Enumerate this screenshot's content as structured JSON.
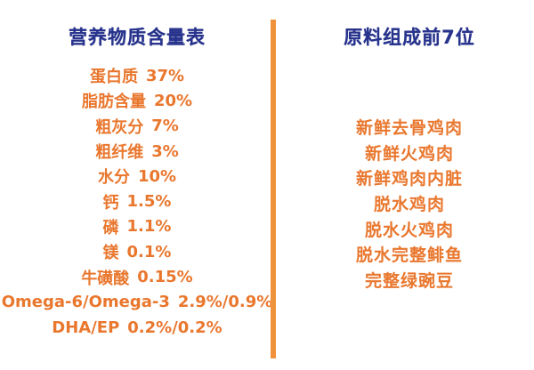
{
  "left_panel": {
    "title": "营养物质含量表",
    "items": [
      {
        "label": "蛋白质",
        "value": "37%"
      },
      {
        "label": "脂肪含量",
        "value": "20%"
      },
      {
        "label": "粗灰分",
        "value": "7%"
      },
      {
        "label": "粗纤维",
        "value": "3%"
      },
      {
        "label": "水分",
        "value": "10%"
      },
      {
        "label": "钙",
        "value": "1.5%"
      },
      {
        "label": "磷",
        "value": "1.1%"
      },
      {
        "label": "镁",
        "value": "0.1%"
      },
      {
        "label": "牛磺酸",
        "value": "0.15%"
      },
      {
        "label": "Omega-6/Omega-3",
        "value": "2.9%/0.9%"
      },
      {
        "label": "DHA/EP",
        "value": "0.2%/0.2%"
      }
    ]
  },
  "right_panel": {
    "title": "原料组成前7位",
    "items": [
      "新鲜去骨鸡肉",
      "新鲜火鸡肉",
      "新鲜鸡肉内脏",
      "脱水鸡肉",
      "脱水火鸡肉",
      "脱水完整鲱鱼",
      "完整绿豌豆"
    ]
  },
  "colors": {
    "title_blue": "#27338C",
    "text_orange": "#E9772E",
    "divider_orange": "#F0923C",
    "background": "#FFFFFF"
  }
}
